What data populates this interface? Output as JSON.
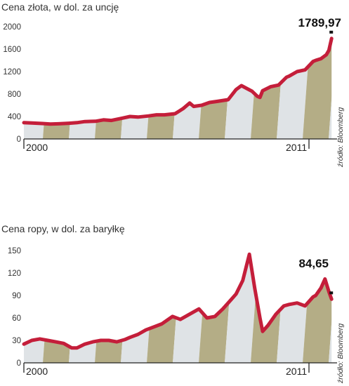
{
  "chart_data": [
    {
      "type": "area",
      "title": "Cena złota, w dol. za uncję",
      "source": "źródło: Bloomberg",
      "final_value_label": "1789,97",
      "x_labels": [
        "2000",
        "2011"
      ],
      "xlim": [
        2000,
        2011.7
      ],
      "ylim": [
        0,
        2000
      ],
      "yticks": [
        0,
        400,
        800,
        1200,
        1600,
        2000
      ],
      "ytick_labels": [
        "0",
        "400",
        "800",
        "1200",
        "1600",
        "2000"
      ],
      "grid": false,
      "series": [
        {
          "x": [
            2000.0,
            2000.3,
            2000.7,
            2001.0,
            2001.3,
            2001.7,
            2002.0,
            2002.3,
            2002.7,
            2003.0,
            2003.3,
            2003.7,
            2004.0,
            2004.3,
            2004.7,
            2005.0,
            2005.3,
            2005.7,
            2006.0,
            2006.25,
            2006.4,
            2006.7,
            2007.0,
            2007.3,
            2007.7,
            2008.0,
            2008.2,
            2008.4,
            2008.6,
            2008.8,
            2008.9,
            2009.0,
            2009.3,
            2009.6,
            2009.9,
            2010.0,
            2010.3,
            2010.6,
            2010.9,
            2011.0,
            2011.2,
            2011.4,
            2011.5,
            2011.6
          ],
          "y": [
            290,
            285,
            275,
            265,
            270,
            280,
            290,
            310,
            315,
            340,
            330,
            370,
            400,
            390,
            410,
            430,
            430,
            450,
            540,
            640,
            580,
            600,
            650,
            670,
            700,
            880,
            950,
            900,
            850,
            760,
            740,
            860,
            930,
            960,
            1100,
            1120,
            1200,
            1230,
            1380,
            1400,
            1430,
            1500,
            1580,
            1790
          ]
        }
      ]
    },
    {
      "type": "area",
      "title": "Cena ropy, w dol. za baryłkę",
      "source": "źródło: Bloomberg",
      "final_value_label": "84,65",
      "x_labels": [
        "2000",
        "2011"
      ],
      "xlim": [
        2000,
        2011.7
      ],
      "ylim": [
        0,
        150
      ],
      "yticks": [
        0,
        30,
        60,
        90,
        120,
        150
      ],
      "ytick_labels": [
        "0",
        "30",
        "60",
        "90",
        "120",
        "150"
      ],
      "grid": false,
      "series": [
        {
          "x": [
            2000.0,
            2000.3,
            2000.6,
            2000.9,
            2001.2,
            2001.5,
            2001.8,
            2002.0,
            2002.3,
            2002.6,
            2002.9,
            2003.2,
            2003.5,
            2003.8,
            2004.0,
            2004.3,
            2004.6,
            2004.9,
            2005.2,
            2005.6,
            2005.9,
            2006.2,
            2006.6,
            2006.9,
            2007.2,
            2007.5,
            2007.8,
            2008.0,
            2008.25,
            2008.5,
            2008.7,
            2008.9,
            2009.0,
            2009.2,
            2009.5,
            2009.8,
            2010.0,
            2010.3,
            2010.6,
            2010.9,
            2011.0,
            2011.2,
            2011.35,
            2011.5,
            2011.6
          ],
          "y": [
            25,
            30,
            32,
            30,
            28,
            26,
            20,
            20,
            25,
            28,
            30,
            30,
            28,
            31,
            34,
            38,
            44,
            48,
            52,
            62,
            58,
            64,
            72,
            60,
            62,
            72,
            84,
            92,
            110,
            145,
            100,
            60,
            42,
            50,
            65,
            76,
            78,
            80,
            76,
            88,
            90,
            100,
            112,
            95,
            85
          ]
        }
      ]
    }
  ]
}
